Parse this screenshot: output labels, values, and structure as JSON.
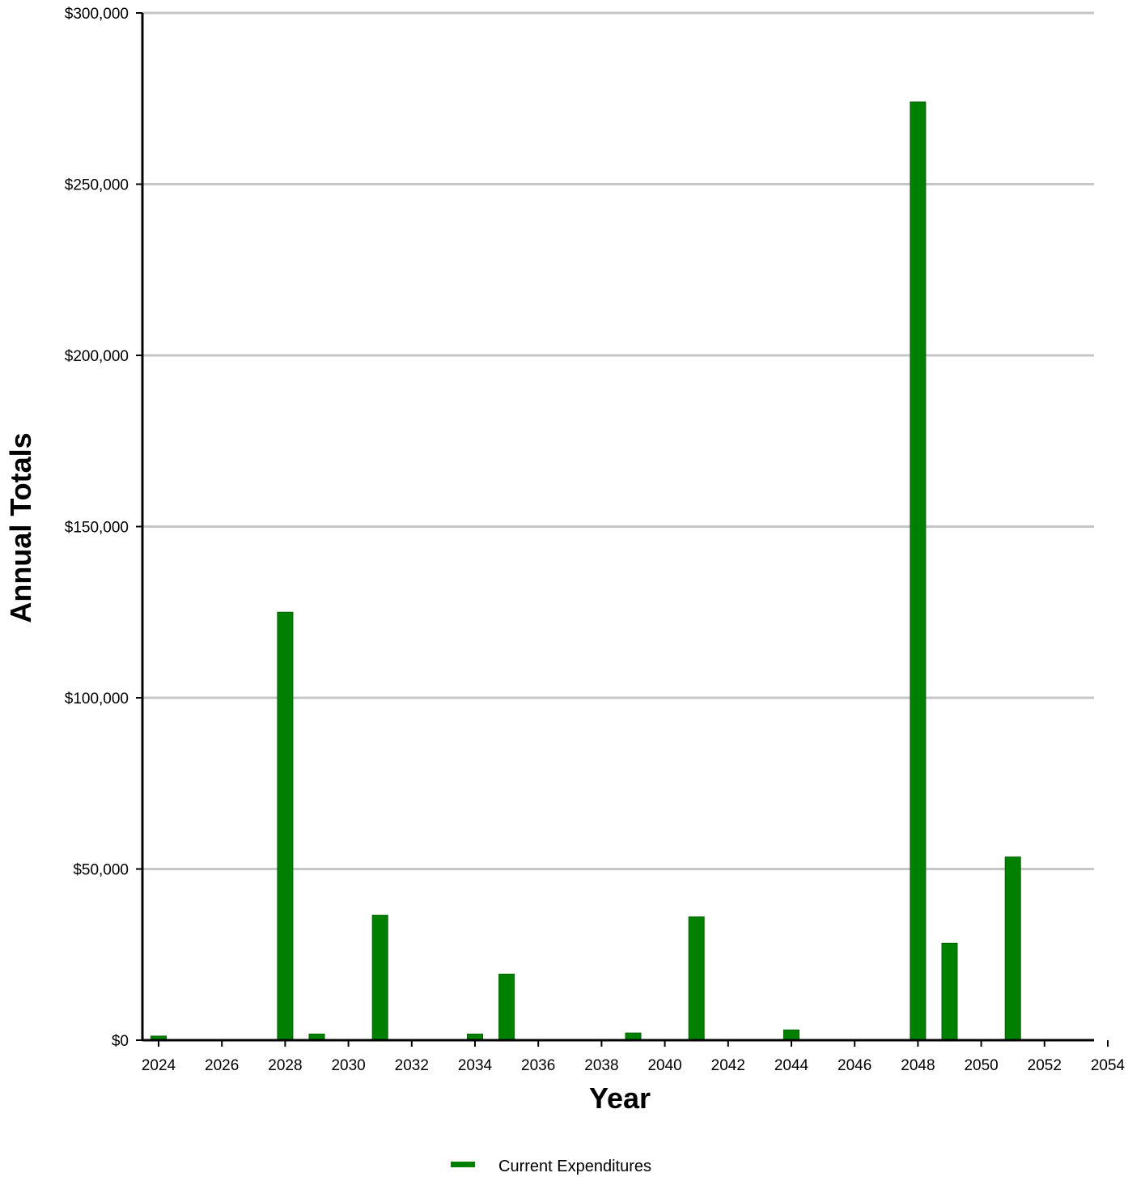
{
  "chart_data": {
    "type": "bar",
    "title": "",
    "xlabel": "Year",
    "ylabel": "Annual Totals",
    "xlim": [
      2023.5,
      2054
    ],
    "ylim": [
      0,
      300000
    ],
    "x_ticks": [
      2024,
      2026,
      2028,
      2030,
      2032,
      2034,
      2036,
      2038,
      2040,
      2042,
      2044,
      2046,
      2048,
      2050,
      2052,
      2054
    ],
    "y_ticks": [
      0,
      50000,
      100000,
      150000,
      200000,
      250000,
      300000
    ],
    "y_tick_labels": [
      "$0",
      "$50,000",
      "$100,000",
      "$150,000",
      "$200,000",
      "$250,000",
      "$300,000"
    ],
    "grid": "horizontal",
    "legend_position": "bottom-center",
    "series": [
      {
        "name": "Current Expenditures",
        "color": "#008000",
        "x": [
          2024,
          2028,
          2029,
          2031,
          2034,
          2035,
          2039,
          2041,
          2044,
          2048,
          2049,
          2051
        ],
        "values": [
          1200,
          125000,
          1800,
          36500,
          1800,
          19300,
          2100,
          36000,
          3000,
          274000,
          28300,
          53500
        ]
      }
    ]
  }
}
